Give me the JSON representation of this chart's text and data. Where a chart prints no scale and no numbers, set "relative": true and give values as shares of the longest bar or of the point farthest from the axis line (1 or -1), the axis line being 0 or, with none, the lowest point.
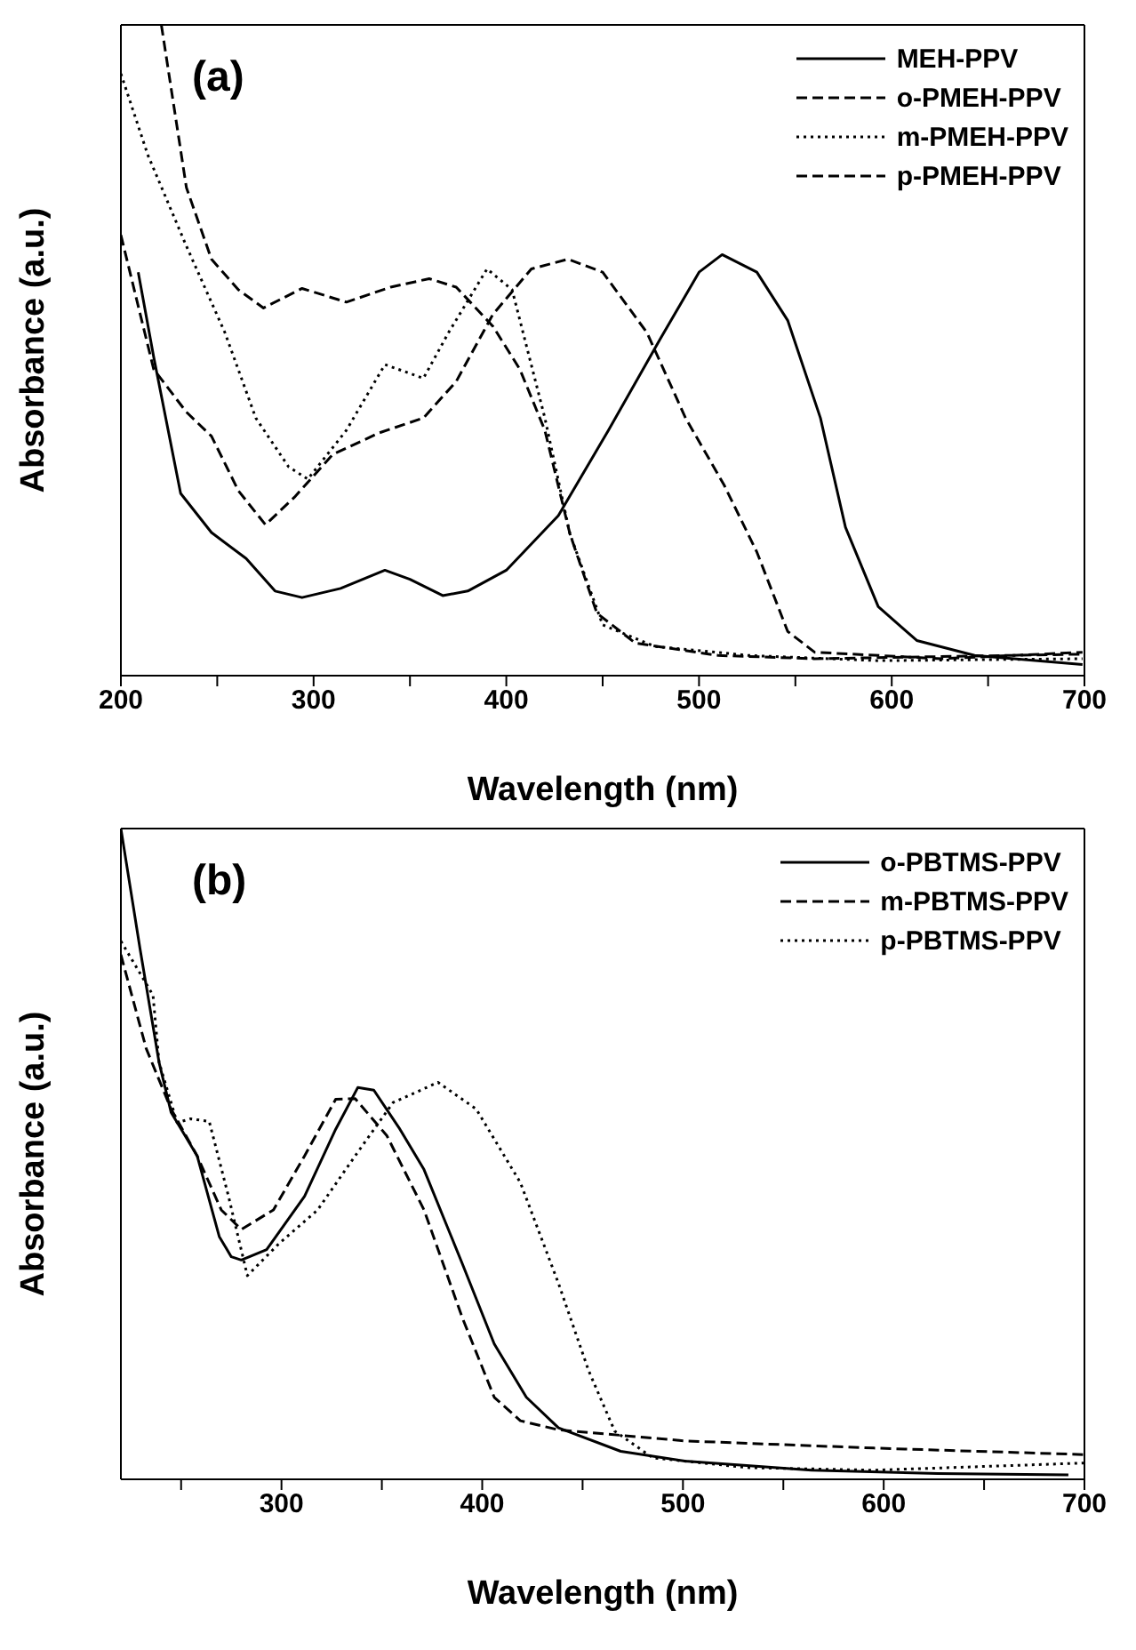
{
  "chart_data": [
    {
      "type": "line",
      "relative": true,
      "annotations": [
        "(a)"
      ],
      "xlabel": "Wavelength (nm)",
      "ylabel": "Absorbance (a.u.)",
      "xlim": [
        200,
        700
      ],
      "xticks": [
        200,
        {
          "value": 250,
          "label": null
        },
        300,
        {
          "value": 350,
          "label": null
        },
        400,
        {
          "value": 450,
          "label": null
        },
        500,
        {
          "value": 550,
          "label": null
        },
        600,
        {
          "value": 650,
          "label": null
        },
        700
      ],
      "legend": "top right",
      "marker": "none",
      "series": [
        {
          "name": "MEH-PPV",
          "color": "#000000",
          "line_style": "solid",
          "x": [
            209,
            217,
            231,
            247,
            265,
            280,
            294,
            314,
            337,
            350,
            367,
            380,
            400,
            427,
            453,
            480,
            500,
            512,
            530,
            546,
            563,
            576,
            593,
            613,
            643,
            699
          ],
          "values": [
            0.62,
            0.49,
            0.28,
            0.22,
            0.18,
            0.13,
            0.12,
            0.134,
            0.162,
            0.148,
            0.123,
            0.13,
            0.162,
            0.246,
            0.377,
            0.518,
            0.62,
            0.647,
            0.62,
            0.546,
            0.396,
            0.228,
            0.106,
            0.054,
            0.031,
            0.017
          ]
        },
        {
          "name": "o-PMEH-PPV",
          "color": "#000000",
          "line_style": "dashed",
          "x": [
            221,
            234,
            247,
            261,
            274,
            294,
            317,
            340,
            360,
            374,
            393,
            407,
            420,
            433,
            447,
            467,
            510,
            560,
            699
          ],
          "values": [
            1.0,
            0.75,
            0.64,
            0.593,
            0.565,
            0.595,
            0.574,
            0.597,
            0.61,
            0.597,
            0.537,
            0.471,
            0.377,
            0.218,
            0.096,
            0.05,
            0.031,
            0.026,
            0.033
          ]
        },
        {
          "name": "m-PMEH-PPV",
          "color": "#000000",
          "line_style": "dotted",
          "x": [
            200,
            214,
            234,
            254,
            270,
            287,
            297,
            317,
            337,
            357,
            370,
            390,
            403,
            420,
            433,
            450,
            477,
            526,
            593,
            699
          ],
          "values": [
            0.925,
            0.8,
            0.66,
            0.527,
            0.396,
            0.321,
            0.302,
            0.377,
            0.478,
            0.457,
            0.527,
            0.625,
            0.593,
            0.396,
            0.218,
            0.078,
            0.045,
            0.031,
            0.023,
            0.026
          ]
        },
        {
          "name": "p-PMEH-PPV",
          "color": "#000000",
          "line_style": "dashed",
          "x": [
            200,
            217,
            234,
            247,
            261,
            275,
            290,
            310,
            334,
            357,
            374,
            393,
            413,
            432,
            450,
            473,
            493,
            513,
            530,
            546,
            560,
            626,
            699
          ],
          "values": [
            0.677,
            0.471,
            0.405,
            0.368,
            0.284,
            0.232,
            0.274,
            0.34,
            0.373,
            0.396,
            0.452,
            0.555,
            0.625,
            0.64,
            0.62,
            0.527,
            0.396,
            0.293,
            0.19,
            0.068,
            0.036,
            0.026,
            0.036
          ]
        }
      ]
    },
    {
      "type": "line",
      "relative": true,
      "annotations": [
        "(b)"
      ],
      "xlabel": "Wavelength (nm)",
      "ylabel": "Absorbance (a.u.)",
      "xlim": [
        220,
        700
      ],
      "xticks": [
        {
          "value": 250,
          "label": null
        },
        300,
        {
          "value": 350,
          "label": null
        },
        400,
        {
          "value": 450,
          "label": null
        },
        500,
        {
          "value": 550,
          "label": null
        },
        600,
        {
          "value": 650,
          "label": null
        },
        700
      ],
      "legend": "top right",
      "marker": "none",
      "series": [
        {
          "name": "o-PBTMS-PPV",
          "color": "#000000",
          "line_style": "solid",
          "x": [
            220,
            229.5,
            239,
            245,
            258,
            269,
            275,
            280,
            292.6,
            311.5,
            327,
            338,
            346,
            359,
            371,
            390,
            406,
            422,
            438,
            469,
            501,
            564,
            627,
            692
          ],
          "values": [
            1,
            0.816,
            0.641,
            0.564,
            0.497,
            0.373,
            0.342,
            0.337,
            0.353,
            0.435,
            0.538,
            0.602,
            0.598,
            0.538,
            0.476,
            0.332,
            0.208,
            0.126,
            0.079,
            0.043,
            0.028,
            0.014,
            0.009,
            0.007
          ]
        },
        {
          "name": "m-PBTMS-PPV",
          "color": "#000000",
          "line_style": "dashed",
          "x": [
            220,
            232.6,
            245,
            258,
            270,
            280,
            296,
            311.5,
            327,
            336.7,
            352.5,
            371,
            390,
            406,
            419,
            438,
            501,
            595,
            700
          ],
          "values": [
            0.806,
            0.662,
            0.569,
            0.497,
            0.414,
            0.384,
            0.414,
            0.497,
            0.584,
            0.585,
            0.528,
            0.414,
            0.249,
            0.126,
            0.09,
            0.076,
            0.059,
            0.048,
            0.038
          ]
        },
        {
          "name": "p-PBTMS-PPV",
          "color": "#000000",
          "line_style": "dotted",
          "x": [
            220,
            236,
            239,
            248,
            254.7,
            264,
            273.6,
            283,
            299,
            318,
            336.7,
            355.6,
            378,
            397,
            419,
            438,
            453,
            466,
            485,
            532,
            595,
            700
          ],
          "values": [
            0.827,
            0.744,
            0.641,
            0.548,
            0.554,
            0.55,
            0.435,
            0.313,
            0.363,
            0.414,
            0.497,
            0.579,
            0.61,
            0.569,
            0.456,
            0.301,
            0.167,
            0.074,
            0.033,
            0.018,
            0.014,
            0.025
          ]
        }
      ]
    }
  ]
}
